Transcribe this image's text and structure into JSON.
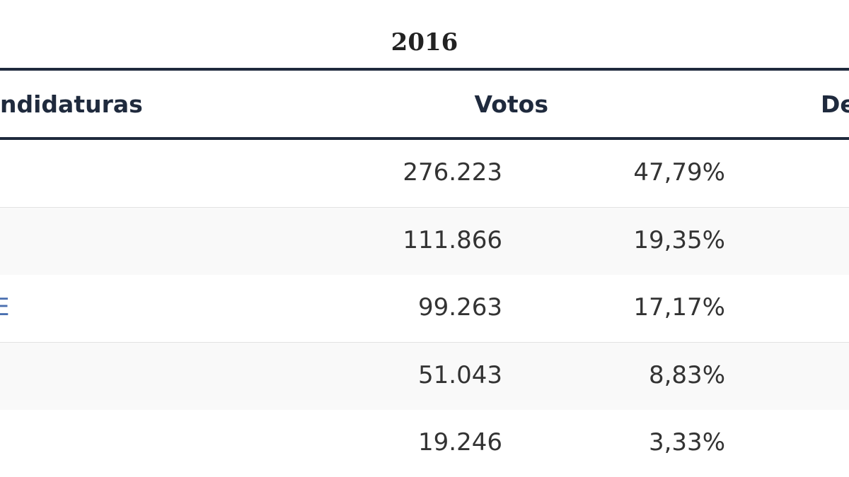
{
  "table": {
    "title": "2016",
    "header": {
      "name": "ndidaturas",
      "votes": "Votos",
      "seats": "De"
    },
    "rows": [
      {
        "votes": "276.223",
        "percent": "47,79%"
      },
      {
        "votes": "111.866",
        "percent": "19,35%"
      },
      {
        "name": "E",
        "votes": "99.263",
        "percent": "17,17%"
      },
      {
        "votes": "51.043",
        "percent": "8,83%"
      },
      {
        "votes": "19.246",
        "percent": "3,33%"
      }
    ]
  }
}
